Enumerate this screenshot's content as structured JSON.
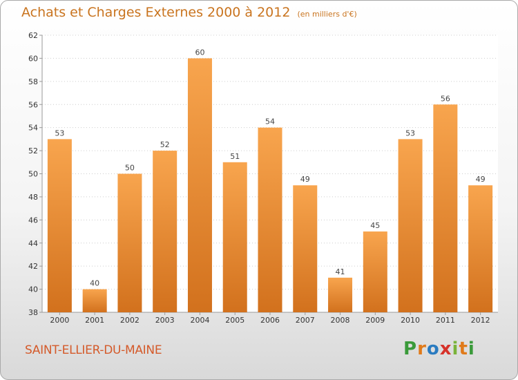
{
  "title": "Achats et Charges Externes 2000 à 2012",
  "subtitle": "(en milliers d'€)",
  "commune": "SAINT-ELLIER-DU-MAINE",
  "logo": {
    "letters": [
      "P",
      "r",
      "o",
      "x",
      "i",
      "t",
      "i"
    ],
    "colors": [
      "#3a9a3a",
      "#e07a1a",
      "#2a7bc0",
      "#d6322a",
      "#7ab33a",
      "#e07a1a",
      "#3a9a3a"
    ]
  },
  "colors": {
    "bar_top": "#f8a54e",
    "bar_bottom": "#d2711d",
    "title": "#c9741f",
    "commune": "#d45a2a"
  },
  "chart_data": {
    "type": "bar",
    "categories": [
      "2000",
      "2001",
      "2002",
      "2003",
      "2004",
      "2005",
      "2006",
      "2007",
      "2008",
      "2009",
      "2010",
      "2011",
      "2012"
    ],
    "values": [
      53,
      40,
      50,
      52,
      60,
      51,
      54,
      49,
      41,
      45,
      53,
      56,
      49
    ],
    "ylim": [
      38,
      62
    ],
    "yticks": [
      38,
      40,
      42,
      44,
      46,
      48,
      50,
      52,
      54,
      56,
      58,
      60,
      62
    ],
    "grid": true
  }
}
